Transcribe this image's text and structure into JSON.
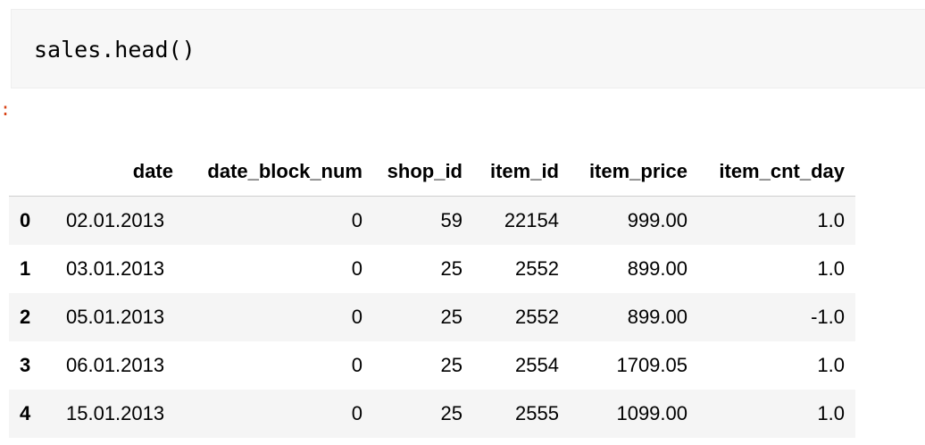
{
  "input_cell": {
    "code": "sales.head()"
  },
  "output_prompt": ":",
  "dataframe": {
    "columns": [
      "date",
      "date_block_num",
      "shop_id",
      "item_id",
      "item_price",
      "item_cnt_day"
    ],
    "rows": [
      {
        "index": "0",
        "values": [
          "02.01.2013",
          "0",
          "59",
          "22154",
          "999.00",
          "1.0"
        ]
      },
      {
        "index": "1",
        "values": [
          "03.01.2013",
          "0",
          "25",
          "2552",
          "899.00",
          "1.0"
        ]
      },
      {
        "index": "2",
        "values": [
          "05.01.2013",
          "0",
          "25",
          "2552",
          "899.00",
          "-1.0"
        ]
      },
      {
        "index": "3",
        "values": [
          "06.01.2013",
          "0",
          "25",
          "2554",
          "1709.05",
          "1.0"
        ]
      },
      {
        "index": "4",
        "values": [
          "15.01.2013",
          "0",
          "25",
          "2555",
          "1099.00",
          "1.0"
        ]
      }
    ]
  },
  "colors": {
    "input_background": "#f7f7f7",
    "prompt_color": "#d84315",
    "striped_row": "#f5f5f5"
  }
}
